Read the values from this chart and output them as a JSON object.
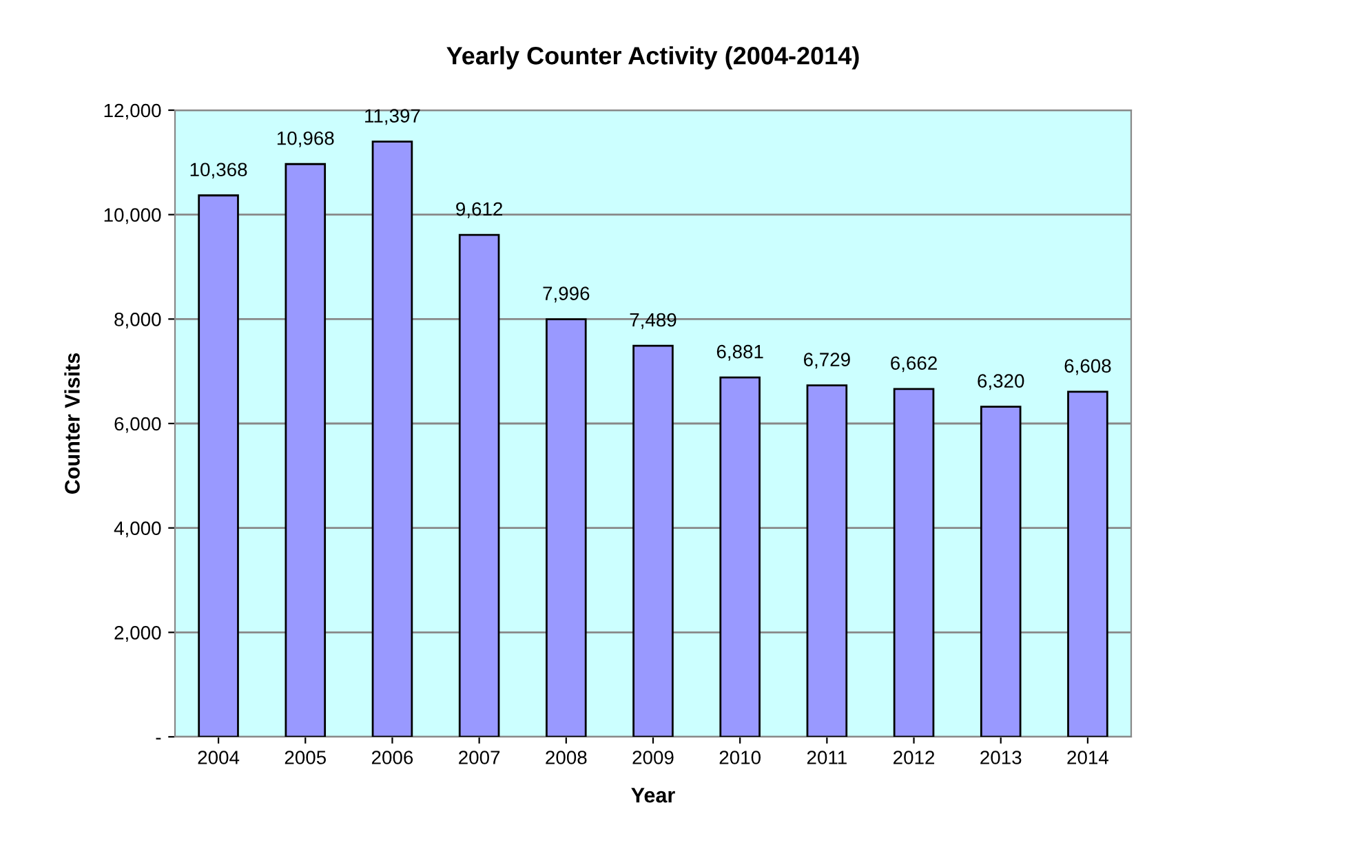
{
  "chart_data": {
    "type": "bar",
    "title": "Yearly Counter Activity (2004-2014)",
    "xlabel": "Year",
    "ylabel": "Counter Visits",
    "categories": [
      "2004",
      "2005",
      "2006",
      "2007",
      "2008",
      "2009",
      "2010",
      "2011",
      "2012",
      "2013",
      "2014"
    ],
    "values": [
      10368,
      10968,
      11397,
      9612,
      7996,
      7489,
      6881,
      6729,
      6662,
      6320,
      6608
    ],
    "value_labels": [
      "10,368",
      "10,968",
      "11,397",
      "9,612",
      "7,996",
      "7,489",
      "6,881",
      "6,729",
      "6,662",
      "6,320",
      "6,608"
    ],
    "color": "#9999ff",
    "ylim": [
      0,
      12000
    ],
    "yticks": [
      {
        "value": 0,
        "label": "-"
      },
      {
        "value": 2000,
        "label": "2,000"
      },
      {
        "value": 4000,
        "label": "4,000"
      },
      {
        "value": 6000,
        "label": "6,000"
      },
      {
        "value": 8000,
        "label": "8,000"
      },
      {
        "value": 10000,
        "label": "10,000"
      },
      {
        "value": 12000,
        "label": "12,000"
      }
    ],
    "grid": "y"
  }
}
